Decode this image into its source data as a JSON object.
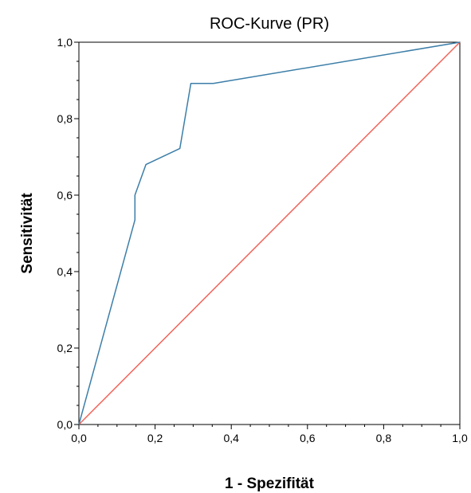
{
  "chart_data": {
    "type": "line",
    "title": "ROC-Kurve (PR)",
    "xlabel": "1 - Spezifität",
    "ylabel": "Sensitivität",
    "xlim": [
      0,
      1
    ],
    "ylim": [
      0,
      1
    ],
    "x_ticks": [
      "0,0",
      "0,2",
      "0,4",
      "0,6",
      "0,8",
      "1,0"
    ],
    "y_ticks": [
      "0,0",
      "0,2",
      "0,4",
      "0,6",
      "0,8",
      "1,0"
    ],
    "grid": false,
    "series": [
      {
        "color": "#3c7ea8",
        "points": [
          [
            0.0,
            0.0
          ],
          [
            0.147,
            0.535
          ],
          [
            0.147,
            0.6
          ],
          [
            0.176,
            0.68
          ],
          [
            0.265,
            0.722
          ],
          [
            0.294,
            0.892
          ],
          [
            0.353,
            0.892
          ],
          [
            1.0,
            1.0
          ]
        ]
      },
      {
        "color": "#f0645a",
        "points": [
          [
            0.0,
            0.0
          ],
          [
            1.0,
            1.0
          ]
        ]
      }
    ]
  }
}
